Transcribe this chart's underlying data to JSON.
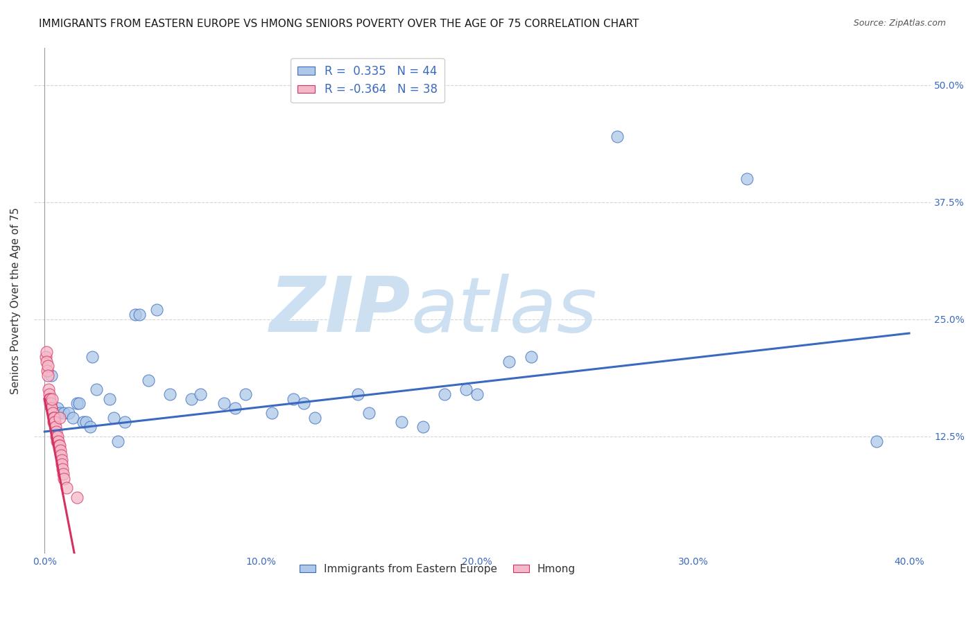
{
  "title": "IMMIGRANTS FROM EASTERN EUROPE VS HMONG SENIORS POVERTY OVER THE AGE OF 75 CORRELATION CHART",
  "source": "Source: ZipAtlas.com",
  "ylabel": "Seniors Poverty Over the Age of 75",
  "x_tick_labels": [
    "0.0%",
    "",
    "10.0%",
    "",
    "20.0%",
    "",
    "30.0%",
    "",
    "40.0%"
  ],
  "x_tick_values": [
    0.0,
    5.0,
    10.0,
    15.0,
    20.0,
    25.0,
    30.0,
    35.0,
    40.0
  ],
  "y_tick_labels": [
    "12.5%",
    "25.0%",
    "37.5%",
    "50.0%"
  ],
  "y_tick_values": [
    12.5,
    25.0,
    37.5,
    50.0
  ],
  "xlim": [
    -0.5,
    41.0
  ],
  "ylim": [
    0,
    54.0
  ],
  "legend_labels": [
    "Immigrants from Eastern Europe",
    "Hmong"
  ],
  "blue_R": 0.335,
  "blue_N": 44,
  "pink_R": -0.364,
  "pink_N": 38,
  "blue_color": "#adc8e8",
  "pink_color": "#f5b8c8",
  "blue_line_color": "#3a6abf",
  "pink_line_color": "#d43060",
  "blue_points": [
    [
      0.3,
      19.0
    ],
    [
      0.5,
      15.0
    ],
    [
      0.6,
      15.5
    ],
    [
      0.7,
      15.0
    ],
    [
      0.9,
      15.0
    ],
    [
      1.1,
      15.0
    ],
    [
      1.3,
      14.5
    ],
    [
      1.5,
      16.0
    ],
    [
      1.6,
      16.0
    ],
    [
      1.8,
      14.0
    ],
    [
      1.9,
      14.0
    ],
    [
      2.1,
      13.5
    ],
    [
      2.2,
      21.0
    ],
    [
      2.4,
      17.5
    ],
    [
      3.0,
      16.5
    ],
    [
      3.2,
      14.5
    ],
    [
      3.4,
      12.0
    ],
    [
      3.7,
      14.0
    ],
    [
      4.2,
      25.5
    ],
    [
      4.4,
      25.5
    ],
    [
      4.8,
      18.5
    ],
    [
      5.2,
      26.0
    ],
    [
      5.8,
      17.0
    ],
    [
      6.8,
      16.5
    ],
    [
      7.2,
      17.0
    ],
    [
      8.3,
      16.0
    ],
    [
      8.8,
      15.5
    ],
    [
      9.3,
      17.0
    ],
    [
      10.5,
      15.0
    ],
    [
      11.5,
      16.5
    ],
    [
      12.0,
      16.0
    ],
    [
      12.5,
      14.5
    ],
    [
      14.5,
      17.0
    ],
    [
      16.5,
      14.0
    ],
    [
      17.5,
      13.5
    ],
    [
      18.5,
      17.0
    ],
    [
      19.5,
      17.5
    ],
    [
      21.5,
      20.5
    ],
    [
      22.5,
      21.0
    ],
    [
      26.5,
      44.5
    ],
    [
      32.5,
      40.0
    ],
    [
      38.5,
      12.0
    ],
    [
      20.0,
      17.0
    ],
    [
      15.0,
      15.0
    ]
  ],
  "pink_points": [
    [
      0.05,
      21.0
    ],
    [
      0.08,
      21.5
    ],
    [
      0.1,
      20.5
    ],
    [
      0.12,
      19.5
    ],
    [
      0.14,
      20.0
    ],
    [
      0.16,
      19.0
    ],
    [
      0.18,
      17.5
    ],
    [
      0.2,
      17.0
    ],
    [
      0.22,
      16.5
    ],
    [
      0.24,
      16.0
    ],
    [
      0.26,
      16.5
    ],
    [
      0.28,
      16.0
    ],
    [
      0.3,
      15.5
    ],
    [
      0.32,
      15.5
    ],
    [
      0.35,
      16.5
    ],
    [
      0.37,
      15.0
    ],
    [
      0.4,
      14.5
    ],
    [
      0.42,
      14.0
    ],
    [
      0.45,
      14.5
    ],
    [
      0.47,
      14.0
    ],
    [
      0.5,
      13.5
    ],
    [
      0.52,
      13.0
    ],
    [
      0.55,
      12.5
    ],
    [
      0.58,
      12.0
    ],
    [
      0.6,
      12.5
    ],
    [
      0.63,
      12.0
    ],
    [
      0.65,
      11.5
    ],
    [
      0.68,
      11.5
    ],
    [
      0.7,
      14.5
    ],
    [
      0.72,
      11.0
    ],
    [
      0.75,
      10.5
    ],
    [
      0.78,
      10.0
    ],
    [
      0.8,
      9.5
    ],
    [
      0.83,
      9.0
    ],
    [
      0.85,
      8.5
    ],
    [
      0.9,
      8.0
    ],
    [
      1.0,
      7.0
    ],
    [
      1.5,
      6.0
    ]
  ],
  "background_color": "#ffffff",
  "grid_color": "#cccccc",
  "title_fontsize": 11,
  "axis_label_fontsize": 11,
  "tick_fontsize": 10,
  "watermark_zip": "ZIP",
  "watermark_atlas": "atlas",
  "watermark_color": "#cde0f2"
}
